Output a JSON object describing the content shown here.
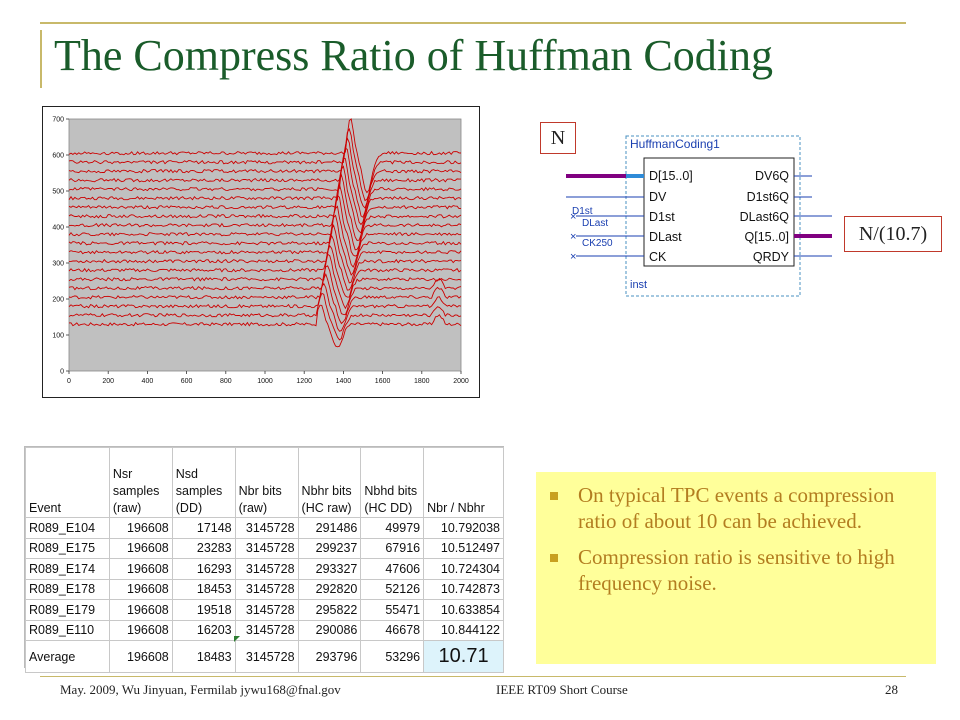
{
  "slide": {
    "title": "The Compress Ratio of Huffman Coding",
    "footer_left": "May. 2009, Wu Jinyuan, Fermilab jywu168@fnal.gov",
    "footer_center": "IEEE RT09 Short Course",
    "page_number": "28"
  },
  "colors": {
    "title": "#1a5c2a",
    "trace": "#cc0000",
    "plot_bg": "#c0c0c0",
    "note_bg": "#ffff9a",
    "note_text": "#b37d20",
    "ratio_highlight": "#ddf3fb",
    "bus": "#800080"
  },
  "chart_data": {
    "type": "line",
    "xlim": [
      0,
      2000
    ],
    "ylim": [
      0,
      700
    ],
    "xticks": [
      0,
      200,
      400,
      600,
      800,
      1000,
      1200,
      1400,
      1600,
      1800,
      2000
    ],
    "yticks": [
      0,
      100,
      200,
      300,
      400,
      500,
      600,
      700
    ],
    "grid": false,
    "legend": "none",
    "series_count": 20,
    "baseline_first": 130,
    "baseline_spacing": 25
  },
  "diagram": {
    "block_title": "HuffmanCoding1",
    "instance_label": "inst",
    "inputs": [
      "D[15..0]",
      "DV",
      "D1st",
      "DLast",
      "CK"
    ],
    "outputs": [
      "DV6Q",
      "D1st6Q",
      "DLast6Q",
      "Q[15..0]",
      "QRDY"
    ],
    "wire_labels": [
      "D1st",
      "DLast",
      "CK250"
    ],
    "label_in": "N",
    "label_out": "N/(10.7)"
  },
  "table": {
    "headers": [
      "Event",
      "Nsr samples (raw)",
      "Nsd samples (DD)",
      "Nbr bits (raw)",
      "Nbhr bits (HC raw)",
      "Nbhd bits (HC DD)",
      "Nbr / Nbhr"
    ],
    "rows": [
      [
        "R089_E104",
        "196608",
        "17148",
        "3145728",
        "291486",
        "49979",
        "10.792038"
      ],
      [
        "R089_E175",
        "196608",
        "23283",
        "3145728",
        "299237",
        "67916",
        "10.512497"
      ],
      [
        "R089_E174",
        "196608",
        "16293",
        "3145728",
        "293327",
        "47606",
        "10.724304"
      ],
      [
        "R089_E178",
        "196608",
        "18453",
        "3145728",
        "292820",
        "52126",
        "10.742873"
      ],
      [
        "R089_E179",
        "196608",
        "19518",
        "3145728",
        "295822",
        "55471",
        "10.633854"
      ],
      [
        "R089_E110",
        "196608",
        "16203",
        "3145728",
        "290086",
        "46678",
        "10.844122"
      ]
    ],
    "average": [
      "Average",
      "196608",
      "18483",
      "3145728",
      "293796",
      "53296",
      "10.71"
    ]
  },
  "notes": [
    "On typical TPC events a compression ratio of about 10 can be achieved.",
    "Compression ratio is sensitive to high frequency noise."
  ]
}
